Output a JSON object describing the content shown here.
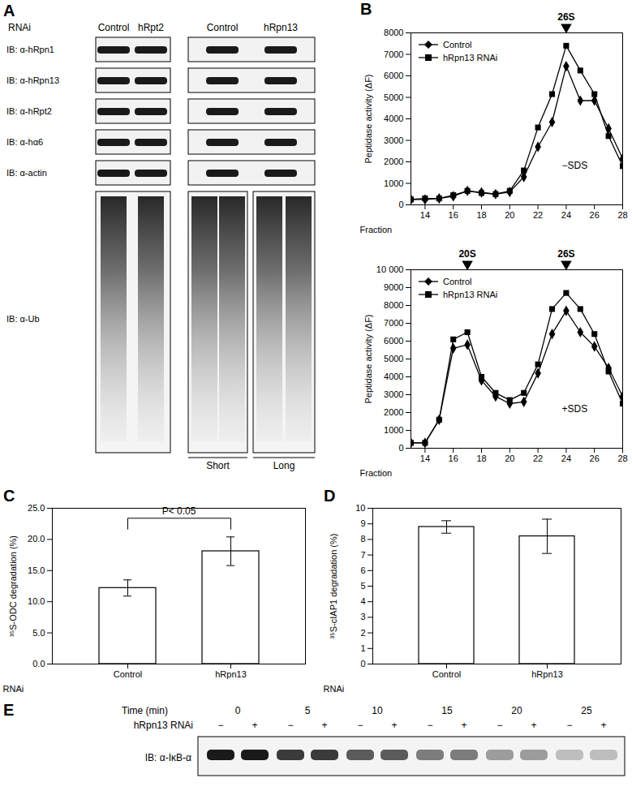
{
  "chart_data": [
    {
      "type": "line",
      "title": "B",
      "xlabel": "Fraction",
      "ylabel": "Peptidase activity (ΔF)",
      "x": [
        13,
        14,
        15,
        16,
        17,
        18,
        19,
        20,
        21,
        22,
        23,
        24,
        25,
        26,
        27,
        28
      ],
      "series": [
        {
          "name": "Control",
          "color": "#000000",
          "marker": "diamond",
          "values": [
            250,
            250,
            300,
            400,
            650,
            580,
            500,
            600,
            1300,
            2700,
            3850,
            6450,
            4850,
            4850,
            3550,
            2150
          ]
        },
        {
          "name": "hRpn13 RNAi",
          "color": "#000000",
          "marker": "square",
          "values": [
            250,
            300,
            300,
            450,
            650,
            550,
            500,
            650,
            1600,
            3600,
            5150,
            7400,
            6250,
            5150,
            3200,
            1800
          ]
        }
      ],
      "xlim": [
        13,
        28
      ],
      "xticks": [
        14,
        16,
        18,
        20,
        22,
        24,
        26,
        28
      ],
      "ylim": [
        0,
        8000
      ],
      "yticks": [
        0,
        1000,
        2000,
        3000,
        4000,
        5000,
        6000,
        7000,
        8000
      ],
      "legend": "top-left",
      "annotations": [
        {
          "text": "26S",
          "x": 24
        },
        {
          "text": "−SDS"
        }
      ]
    },
    {
      "type": "line",
      "xlabel": "Fraction",
      "ylabel": "Peptidase activity (ΔF)",
      "x": [
        13,
        14,
        15,
        16,
        17,
        18,
        19,
        20,
        21,
        22,
        23,
        24,
        25,
        26,
        27,
        28
      ],
      "series": [
        {
          "name": "Control",
          "color": "#000000",
          "marker": "diamond",
          "values": [
            300,
            300,
            1600,
            5600,
            5800,
            3800,
            2900,
            2500,
            2600,
            4200,
            6400,
            7700,
            6500,
            5700,
            4500,
            2900
          ]
        },
        {
          "name": "hRpn13 RNAi",
          "color": "#000000",
          "marker": "square",
          "values": [
            300,
            300,
            1600,
            6100,
            6500,
            4000,
            3100,
            2700,
            3100,
            4700,
            7800,
            8700,
            7800,
            6400,
            4300,
            2500
          ]
        }
      ],
      "xlim": [
        13,
        28
      ],
      "xticks": [
        14,
        16,
        18,
        20,
        22,
        24,
        26,
        28
      ],
      "ylim": [
        0,
        10000
      ],
      "yticks": [
        0,
        1000,
        2000,
        3000,
        4000,
        5000,
        6000,
        7000,
        8000,
        9000,
        {
          "value": 10000,
          "label": "10 000"
        }
      ],
      "legend": "top-left",
      "annotations": [
        {
          "text": "20S",
          "x": 17
        },
        {
          "text": "26S",
          "x": 24
        },
        {
          "text": "+SDS"
        }
      ]
    },
    {
      "type": "bar",
      "title": "C",
      "xlabel": "RNAi",
      "ylabel": "³⁵S-ODC degradation (%)",
      "categories": [
        "Control",
        "hRpn13"
      ],
      "values": [
        12.2,
        18.1
      ],
      "errors": [
        1.3,
        2.3
      ],
      "color": "#ffffff",
      "ylim": [
        0,
        25
      ],
      "yticks": [
        {
          "value": 0,
          "label": "0.0"
        },
        {
          "value": 5,
          "label": "5.0"
        },
        {
          "value": 10,
          "label": "10.0"
        },
        {
          "value": 15,
          "label": "15.0"
        },
        {
          "value": 20,
          "label": "20.0"
        },
        {
          "value": 25,
          "label": "25.0"
        }
      ],
      "annotations": [
        {
          "text": "P< 0.05"
        }
      ]
    },
    {
      "type": "bar",
      "title": "D",
      "xlabel": "RNAi",
      "ylabel": "³⁵S-cIAP1 degradation (%)",
      "categories": [
        "Control",
        "hRpn13"
      ],
      "values": [
        8.8,
        8.2
      ],
      "errors": [
        0.4,
        1.1
      ],
      "color": "#ffffff",
      "ylim": [
        0,
        10
      ],
      "yticks": [
        0,
        1,
        2,
        3,
        4,
        5,
        6,
        7,
        8,
        9,
        10
      ]
    }
  ],
  "blots": {
    "A": {
      "panel": "A",
      "header": "RNAi",
      "columns": [
        "Control",
        "hRpt2",
        "Control",
        "hRpn13"
      ],
      "rows": [
        "IB: α-hRpn1",
        "IB: α-hRpn13",
        "IB: α-hRpt2",
        "IB: α-hα6",
        "IB: α-actin",
        "IB: α-Ub"
      ],
      "exposures": [
        "Short",
        "Long"
      ]
    },
    "E": {
      "panel": "E",
      "time_label": "Time (min)",
      "times": [
        0,
        5,
        10,
        15,
        20,
        25
      ],
      "treatment_label": "hRpn13 RNAi",
      "treatment": [
        "−",
        "+"
      ],
      "row": "IB: α-IκB-α"
    }
  }
}
